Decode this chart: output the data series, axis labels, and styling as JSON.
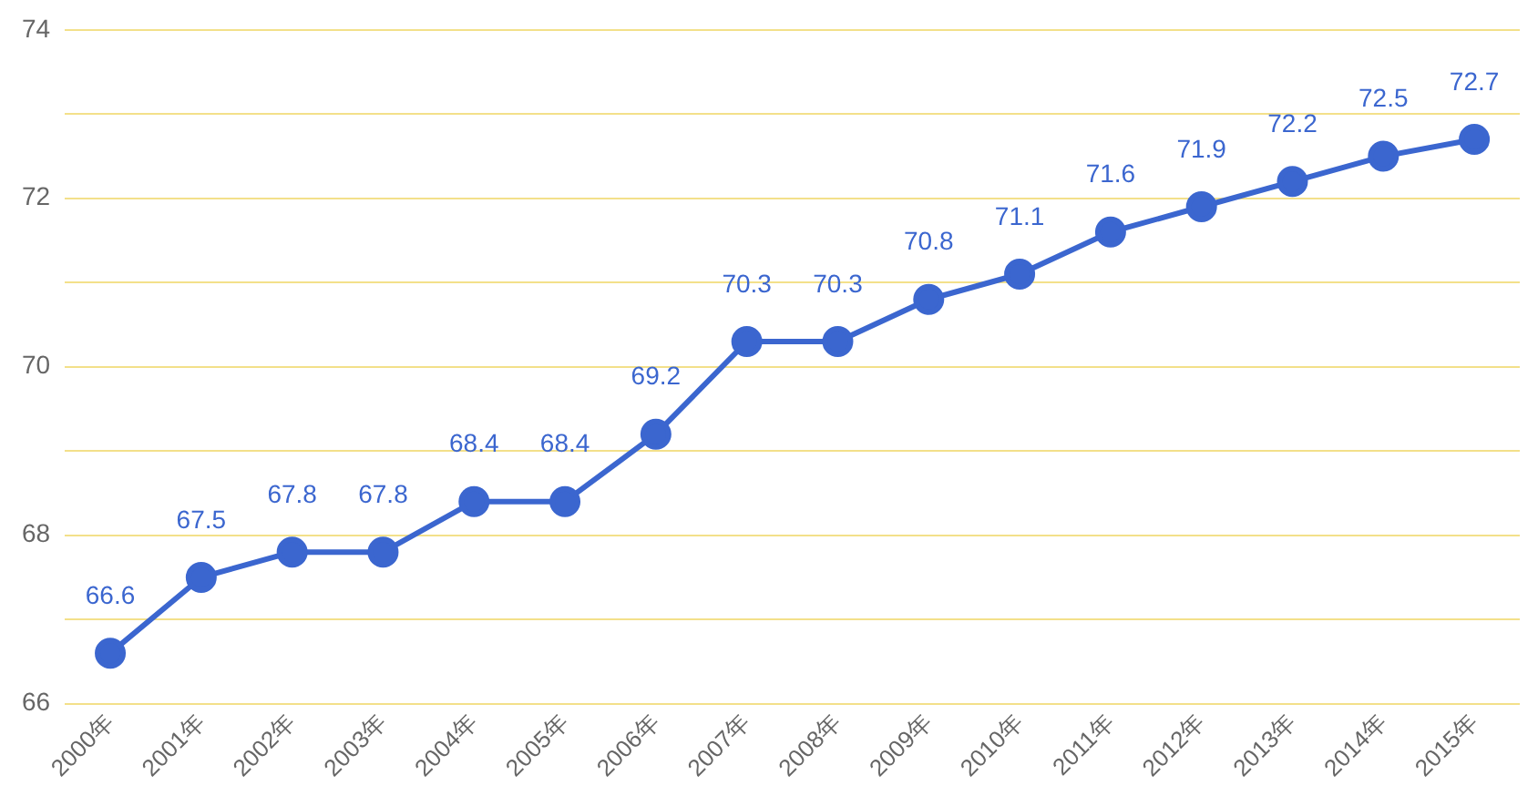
{
  "chart_data": {
    "type": "line",
    "categories": [
      "2000年",
      "2001年",
      "2002年",
      "2003年",
      "2004年",
      "2005年",
      "2006年",
      "2007年",
      "2008年",
      "2009年",
      "2010年",
      "2011年",
      "2012年",
      "2013年",
      "2014年",
      "2015年"
    ],
    "series": [
      {
        "color": "#3b66cf",
        "values": [
          66.6,
          67.5,
          67.8,
          67.8,
          68.4,
          68.4,
          69.2,
          70.3,
          70.3,
          70.8,
          71.1,
          71.6,
          71.9,
          72.2,
          72.5,
          72.7
        ]
      }
    ],
    "ylim": [
      66,
      74
    ],
    "yticks": [
      66,
      {
        "value": 67,
        "label": null
      },
      68,
      {
        "value": 69,
        "label": null
      },
      70,
      {
        "value": 71,
        "label": null
      },
      72,
      {
        "value": 73,
        "label": null
      },
      74
    ],
    "grid": "y",
    "legend": false,
    "marker": "circle",
    "line_style": "solid",
    "data_labels": true
  }
}
